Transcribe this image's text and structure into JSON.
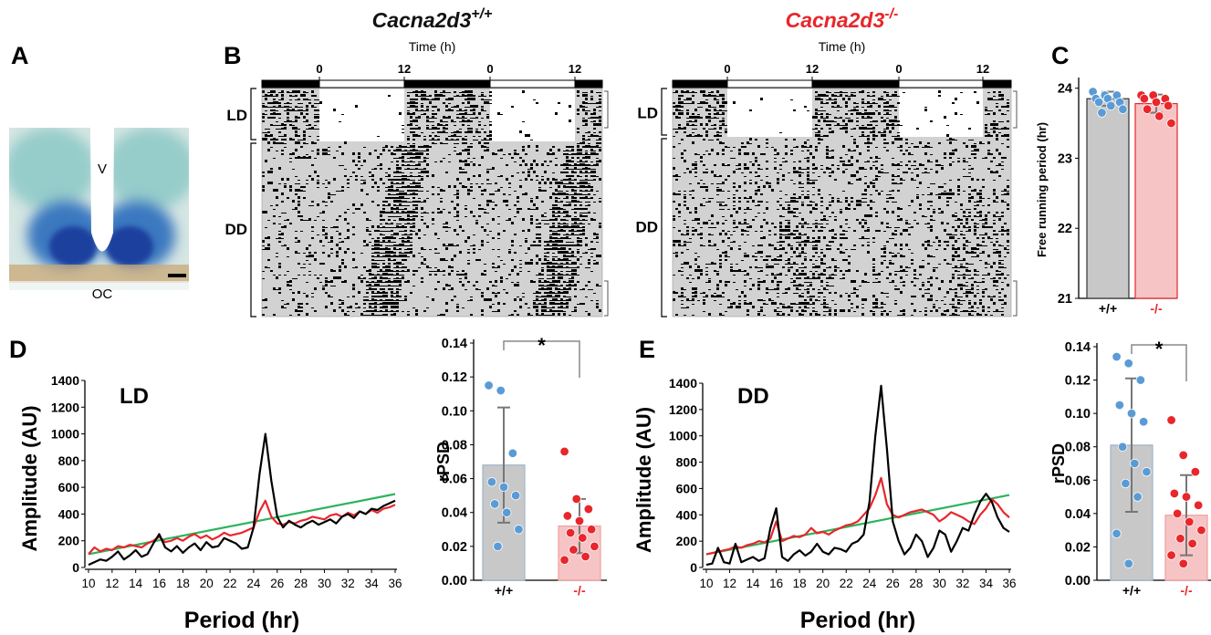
{
  "panel_labels": [
    "A",
    "B",
    "C",
    "D",
    "E"
  ],
  "histology": {
    "labels": [
      "V",
      "OC"
    ]
  },
  "actograms": [
    {
      "gene": "Cacna2d3",
      "genotype": "+/+",
      "color": "#111111",
      "time_label": "Time (h)",
      "time_ticks": [
        0,
        12,
        0,
        12
      ],
      "phase_labels": [
        "LD",
        "DD"
      ]
    },
    {
      "gene": "Cacna2d3",
      "genotype": "-/-",
      "color": "#e8262b",
      "time_label": "Time (h)",
      "time_ticks": [
        0,
        12,
        0,
        12
      ],
      "phase_labels": [
        "LD",
        "DD"
      ]
    }
  ],
  "chart_data": [
    {
      "type": "bar",
      "ylabel": "Free running period (hr)",
      "categories": [
        "+/+",
        "-/-"
      ],
      "values": [
        23.85,
        23.78
      ],
      "errors": [
        0.1,
        0.13
      ],
      "points": [
        [
          23.95,
          23.9,
          23.9,
          23.85,
          23.85,
          23.8,
          23.8,
          23.75,
          23.7,
          23.65
        ],
        [
          23.9,
          23.9,
          23.85,
          23.85,
          23.8,
          23.75,
          23.7,
          23.6,
          23.5
        ]
      ],
      "colors": [
        "#c8c8c8",
        "#f6c4c4"
      ],
      "edge_colors": [
        "#333333",
        "#e8262b"
      ],
      "point_colors": [
        "#5b9bd5",
        "#e8262b"
      ],
      "label_colors": [
        "#000000",
        "#e8262b"
      ],
      "ylim": [
        21,
        24.1
      ],
      "yticks": [
        21,
        22,
        23,
        24
      ]
    },
    {
      "type": "line",
      "annotation": "LD",
      "xlabel": "Period (hr)",
      "ylabel": "Amplitude (AU)",
      "x": [
        10,
        10.5,
        11,
        11.5,
        12,
        12.5,
        13,
        13.5,
        14,
        14.5,
        15,
        15.5,
        16,
        16.5,
        17,
        17.5,
        18,
        18.5,
        19,
        19.5,
        20,
        20.5,
        21,
        21.5,
        22,
        22.5,
        23,
        23.5,
        24,
        24.5,
        25,
        25.5,
        26,
        26.5,
        27,
        27.5,
        28,
        28.5,
        29,
        29.5,
        30,
        30.5,
        31,
        31.5,
        32,
        32.5,
        33,
        33.5,
        34,
        34.5,
        35,
        35.5,
        36
      ],
      "series": [
        {
          "color": "#2db35d",
          "x": [
            10,
            36
          ],
          "values": [
            100,
            550
          ]
        },
        {
          "color": "#e8262b",
          "values": [
            100,
            150,
            120,
            140,
            130,
            160,
            150,
            170,
            160,
            150,
            180,
            200,
            230,
            190,
            200,
            220,
            200,
            230,
            250,
            220,
            240,
            210,
            230,
            260,
            240,
            250,
            260,
            280,
            300,
            420,
            500,
            380,
            330,
            320,
            340,
            330,
            350,
            360,
            380,
            370,
            360,
            390,
            400,
            380,
            410,
            390,
            420,
            400,
            430,
            410,
            440,
            450,
            470
          ]
        },
        {
          "color": "#000000",
          "values": [
            20,
            40,
            60,
            50,
            80,
            120,
            60,
            90,
            130,
            80,
            100,
            180,
            250,
            150,
            120,
            160,
            110,
            150,
            180,
            130,
            190,
            150,
            160,
            220,
            200,
            180,
            140,
            150,
            300,
            700,
            1000,
            650,
            380,
            300,
            350,
            320,
            300,
            330,
            350,
            320,
            340,
            360,
            330,
            380,
            400,
            370,
            420,
            400,
            440,
            430,
            460,
            480,
            500
          ]
        }
      ],
      "xlim": [
        10,
        36
      ],
      "xticks": [
        10,
        12,
        14,
        16,
        18,
        20,
        22,
        24,
        26,
        28,
        30,
        32,
        34,
        36
      ],
      "ylim": [
        0,
        1400
      ],
      "yticks": [
        0,
        200,
        400,
        600,
        800,
        1000,
        1200,
        1400
      ]
    },
    {
      "type": "bar",
      "ylabel": "rPSD",
      "categories": [
        "+/+",
        "-/-"
      ],
      "significance": "*",
      "values": [
        0.068,
        0.032
      ],
      "errors": [
        0.034,
        0.016
      ],
      "points": [
        [
          0.115,
          0.112,
          0.075,
          0.058,
          0.055,
          0.05,
          0.045,
          0.04,
          0.03,
          0.02
        ],
        [
          0.076,
          0.048,
          0.042,
          0.038,
          0.035,
          0.03,
          0.028,
          0.025,
          0.02,
          0.018,
          0.014,
          0.012
        ]
      ],
      "colors": [
        "#c8c8c8",
        "#f6c4c4"
      ],
      "edge_colors": [
        "#9fb3c8",
        "#f0a0a0"
      ],
      "point_colors": [
        "#5b9bd5",
        "#e8262b"
      ],
      "label_colors": [
        "#000000",
        "#e8262b"
      ],
      "ylim": [
        0,
        0.14
      ],
      "yticks": [
        {
          "value": 0,
          "label": "0.00"
        },
        0.02,
        0.04,
        0.06,
        0.08,
        {
          "value": 0.1,
          "label": "0.10"
        },
        0.12,
        0.14
      ]
    },
    {
      "type": "line",
      "annotation": "DD",
      "xlabel": "Period (hr)",
      "ylabel": "Amplitude (AU)",
      "x": [
        10,
        10.5,
        11,
        11.5,
        12,
        12.5,
        13,
        13.5,
        14,
        14.5,
        15,
        15.5,
        16,
        16.5,
        17,
        17.5,
        18,
        18.5,
        19,
        19.5,
        20,
        20.5,
        21,
        21.5,
        22,
        22.5,
        23,
        23.5,
        24,
        24.5,
        25,
        25.5,
        26,
        26.5,
        27,
        27.5,
        28,
        28.5,
        29,
        29.5,
        30,
        30.5,
        31,
        31.5,
        32,
        32.5,
        33,
        33.5,
        34,
        34.5,
        35,
        35.5,
        36
      ],
      "series": [
        {
          "color": "#2db35d",
          "x": [
            10,
            36
          ],
          "values": [
            100,
            550
          ]
        },
        {
          "color": "#e8262b",
          "values": [
            100,
            110,
            120,
            130,
            140,
            160,
            150,
            170,
            180,
            200,
            190,
            220,
            350,
            200,
            220,
            240,
            230,
            250,
            300,
            260,
            270,
            250,
            280,
            300,
            320,
            330,
            350,
            400,
            450,
            550,
            680,
            480,
            400,
            380,
            400,
            420,
            430,
            440,
            420,
            400,
            350,
            380,
            420,
            400,
            380,
            350,
            330,
            400,
            450,
            520,
            480,
            420,
            380
          ]
        },
        {
          "color": "#000000",
          "values": [
            20,
            30,
            150,
            40,
            30,
            180,
            40,
            60,
            80,
            50,
            70,
            300,
            450,
            80,
            50,
            100,
            130,
            90,
            120,
            180,
            120,
            100,
            150,
            140,
            120,
            180,
            200,
            250,
            500,
            1000,
            1380,
            900,
            350,
            200,
            100,
            150,
            250,
            200,
            80,
            150,
            280,
            250,
            120,
            200,
            300,
            280,
            400,
            500,
            560,
            500,
            380,
            300,
            270
          ]
        }
      ],
      "xlim": [
        10,
        36
      ],
      "xticks": [
        10,
        12,
        14,
        16,
        18,
        20,
        22,
        24,
        26,
        28,
        30,
        32,
        34,
        36
      ],
      "ylim": [
        0,
        1400
      ],
      "yticks": [
        0,
        200,
        400,
        600,
        800,
        1000,
        1200,
        1400
      ]
    },
    {
      "type": "bar",
      "ylabel": "rPSD",
      "categories": [
        "+/+",
        "-/-"
      ],
      "significance": "*",
      "values": [
        0.081,
        0.039
      ],
      "errors": [
        0.04,
        0.024
      ],
      "points": [
        [
          0.134,
          0.13,
          0.12,
          0.105,
          0.1,
          0.095,
          0.08,
          0.07,
          0.065,
          0.058,
          0.05,
          0.028,
          0.01
        ],
        [
          0.096,
          0.075,
          0.065,
          0.052,
          0.05,
          0.045,
          0.04,
          0.035,
          0.03,
          0.025,
          0.022,
          0.015,
          0.01
        ]
      ],
      "colors": [
        "#c8c8c8",
        "#f6c4c4"
      ],
      "edge_colors": [
        "#9fb3c8",
        "#f0a0a0"
      ],
      "point_colors": [
        "#5b9bd5",
        "#e8262b"
      ],
      "label_colors": [
        "#000000",
        "#e8262b"
      ],
      "ylim": [
        0,
        0.14
      ],
      "yticks": [
        {
          "value": 0,
          "label": "0.00"
        },
        0.02,
        0.04,
        0.06,
        0.08,
        {
          "value": 0.1,
          "label": "0.10"
        },
        0.12,
        0.14
      ]
    }
  ]
}
